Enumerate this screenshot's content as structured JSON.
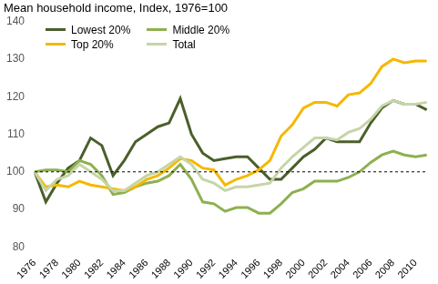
{
  "chart_data": {
    "type": "line",
    "title": "Mean household income, Index, 1976=100",
    "categories": [
      "1976",
      null,
      "1978",
      null,
      "1980",
      null,
      "1982",
      null,
      "1984",
      null,
      "1986",
      null,
      "1988",
      null,
      "1990",
      null,
      "1992",
      null,
      "1994",
      null,
      "1996",
      null,
      "1998",
      null,
      "2000",
      null,
      "2002",
      null,
      "2004",
      null,
      "2006",
      null,
      "2008",
      null,
      "2010",
      null
    ],
    "series": [
      {
        "name": "Lowest 20%",
        "color": "#4b5f2b",
        "values": [
          100,
          92,
          97,
          101,
          103,
          109,
          107,
          99,
          103,
          108,
          110,
          112,
          113,
          119.5,
          110,
          105,
          103,
          103.5,
          104,
          104,
          101,
          98,
          98,
          101,
          104,
          106,
          109,
          108,
          108,
          108,
          113,
          117,
          119,
          118,
          118,
          116.5
        ]
      },
      {
        "name": "Middle 20%",
        "color": "#8db050",
        "values": [
          100,
          100.5,
          100.5,
          100,
          103,
          102,
          99,
          94,
          94.5,
          96,
          97,
          97.5,
          99,
          102,
          98,
          92,
          91.5,
          89.5,
          90.5,
          90.5,
          89,
          89,
          91.5,
          94.5,
          95.5,
          97.5,
          97.5,
          97.5,
          98.5,
          100,
          102.5,
          104.5,
          105.5,
          104.5,
          104,
          104.5
        ]
      },
      {
        "name": "Top 20%",
        "color": "#f5b800",
        "values": [
          100,
          96,
          96.5,
          96,
          97.5,
          96.5,
          96,
          95.5,
          95,
          96,
          98,
          99,
          101,
          103.5,
          103,
          101,
          100.5,
          96.5,
          98,
          99,
          100.5,
          103,
          109.5,
          112.5,
          117,
          118.5,
          118.5,
          117.5,
          120.5,
          121,
          123.5,
          128,
          130,
          129,
          129.5,
          129.5
        ]
      },
      {
        "name": "Total",
        "color": "#c5d5a8",
        "values": [
          100,
          95,
          98,
          99,
          102,
          100,
          98,
          95,
          95,
          97,
          99,
          100,
          102,
          104,
          102,
          98,
          97,
          95,
          96,
          96,
          96.5,
          97,
          101,
          104,
          106.5,
          109,
          109,
          108.5,
          110.5,
          111.5,
          114,
          117.5,
          119,
          118,
          118,
          118.5
        ]
      }
    ],
    "ylim": [
      80,
      140
    ],
    "yticks": [
      80,
      90,
      100,
      110,
      120,
      130,
      140
    ],
    "grid": false,
    "legend": "upper left"
  }
}
